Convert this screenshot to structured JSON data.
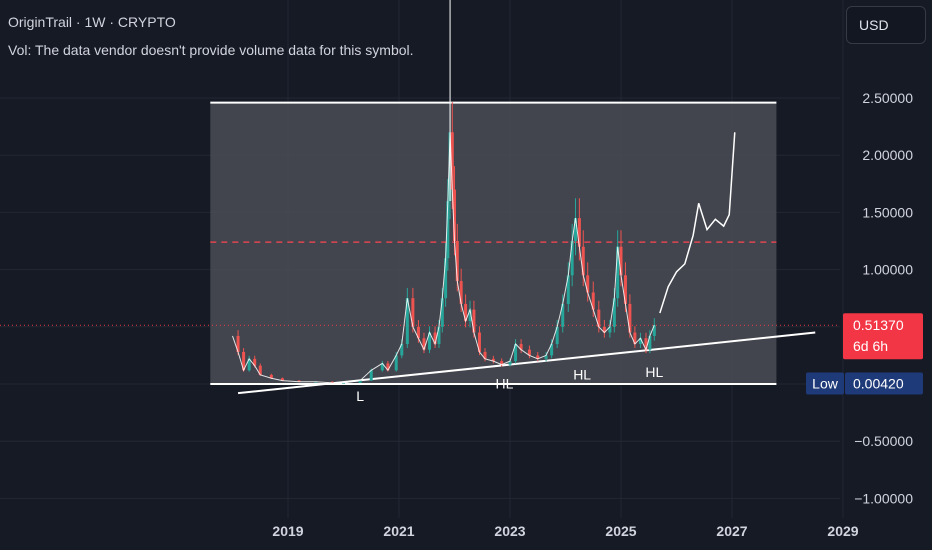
{
  "header": {
    "title": "OriginTrail · 1W · CRYPTO",
    "volume_note": "Vol: The data vendor doesn't provide volume data for this symbol."
  },
  "currency_button": "USD",
  "colors": {
    "background": "#161a25",
    "up": "#26a69a",
    "down": "#ef5350",
    "price_tag": "#f23645",
    "low_tag": "#1e3a78",
    "range_fill": "#4a4d55"
  },
  "chart_data": {
    "type": "candlestick",
    "symbol": "OriginTrail",
    "interval": "1W",
    "exchange": "CRYPTO",
    "ylim": [
      -1.05,
      2.9
    ],
    "xlim": [
      2017.0,
      2030.0
    ],
    "y_ticks": [
      "2.50000",
      "2.00000",
      "1.50000",
      "1.00000",
      "−0.50000",
      "−1.00000"
    ],
    "y_tick_values": [
      2.5,
      2.0,
      1.5,
      1.0,
      -0.5,
      -1.0
    ],
    "x_ticks": [
      "2019",
      "2021",
      "2023",
      "2025",
      "2027",
      "2029"
    ],
    "x_tick_values": [
      2019,
      2021,
      2023,
      2025,
      2027,
      2029
    ],
    "current_price": {
      "value": "0.51370",
      "countdown": "6d 6h",
      "numeric": 0.5137
    },
    "low_marker": {
      "label": "Low",
      "value": "0.00420",
      "numeric": 0.0042
    },
    "price_series": [
      [
        2018.0,
        0.42
      ],
      [
        2018.1,
        0.28
      ],
      [
        2018.2,
        0.12
      ],
      [
        2018.3,
        0.22
      ],
      [
        2018.4,
        0.16
      ],
      [
        2018.5,
        0.08
      ],
      [
        2018.7,
        0.05
      ],
      [
        2018.9,
        0.03
      ],
      [
        2019.2,
        0.02
      ],
      [
        2019.5,
        0.02
      ],
      [
        2019.8,
        0.01
      ],
      [
        2020.0,
        0.01
      ],
      [
        2020.3,
        0.03
      ],
      [
        2020.5,
        0.12
      ],
      [
        2020.7,
        0.18
      ],
      [
        2020.8,
        0.12
      ],
      [
        2020.95,
        0.25
      ],
      [
        2021.05,
        0.35
      ],
      [
        2021.15,
        0.75
      ],
      [
        2021.25,
        0.5
      ],
      [
        2021.35,
        0.4
      ],
      [
        2021.45,
        0.3
      ],
      [
        2021.55,
        0.45
      ],
      [
        2021.65,
        0.35
      ],
      [
        2021.72,
        0.5
      ],
      [
        2021.78,
        0.75
      ],
      [
        2021.84,
        1.1
      ],
      [
        2021.88,
        1.6
      ],
      [
        2021.92,
        2.2
      ],
      [
        2021.96,
        1.7
      ],
      [
        2022.0,
        1.25
      ],
      [
        2022.05,
        0.9
      ],
      [
        2022.12,
        0.7
      ],
      [
        2022.2,
        0.55
      ],
      [
        2022.28,
        0.65
      ],
      [
        2022.35,
        0.45
      ],
      [
        2022.45,
        0.28
      ],
      [
        2022.55,
        0.22
      ],
      [
        2022.7,
        0.2
      ],
      [
        2022.85,
        0.17
      ],
      [
        2023.0,
        0.2
      ],
      [
        2023.1,
        0.35
      ],
      [
        2023.2,
        0.3
      ],
      [
        2023.35,
        0.25
      ],
      [
        2023.5,
        0.22
      ],
      [
        2023.65,
        0.25
      ],
      [
        2023.75,
        0.35
      ],
      [
        2023.85,
        0.5
      ],
      [
        2023.95,
        0.7
      ],
      [
        2024.05,
        0.95
      ],
      [
        2024.12,
        1.25
      ],
      [
        2024.18,
        1.45
      ],
      [
        2024.25,
        1.2
      ],
      [
        2024.32,
        0.95
      ],
      [
        2024.4,
        0.8
      ],
      [
        2024.5,
        0.65
      ],
      [
        2024.6,
        0.5
      ],
      [
        2024.7,
        0.45
      ],
      [
        2024.8,
        0.5
      ],
      [
        2024.88,
        0.75
      ],
      [
        2024.94,
        1.2
      ],
      [
        2025.0,
        0.95
      ],
      [
        2025.08,
        0.7
      ],
      [
        2025.16,
        0.45
      ],
      [
        2025.25,
        0.35
      ],
      [
        2025.35,
        0.4
      ],
      [
        2025.45,
        0.3
      ],
      [
        2025.52,
        0.42
      ],
      [
        2025.6,
        0.5137
      ]
    ],
    "annotations": {
      "range_box": {
        "x_start": 2017.6,
        "x_end": 2027.8,
        "y_top": 2.46,
        "y_bottom": 0.0
      },
      "red_dashed_level": 1.24,
      "support_trendline": [
        [
          2018.1,
          -0.08
        ],
        [
          2028.5,
          0.45
        ]
      ],
      "pivot_labels": [
        {
          "text": "L",
          "x": 2020.3,
          "y": -0.15
        },
        {
          "text": "HL",
          "x": 2022.9,
          "y": -0.04
        },
        {
          "text": "HL",
          "x": 2024.3,
          "y": 0.04
        },
        {
          "text": "HL",
          "x": 2025.6,
          "y": 0.06
        }
      ],
      "projection_path": [
        [
          2025.7,
          0.62
        ],
        [
          2025.85,
          0.85
        ],
        [
          2026.0,
          0.98
        ],
        [
          2026.15,
          1.05
        ],
        [
          2026.3,
          1.3
        ],
        [
          2026.4,
          1.58
        ],
        [
          2026.55,
          1.35
        ],
        [
          2026.7,
          1.44
        ],
        [
          2026.85,
          1.38
        ],
        [
          2026.95,
          1.48
        ],
        [
          2027.05,
          2.2
        ]
      ]
    }
  }
}
